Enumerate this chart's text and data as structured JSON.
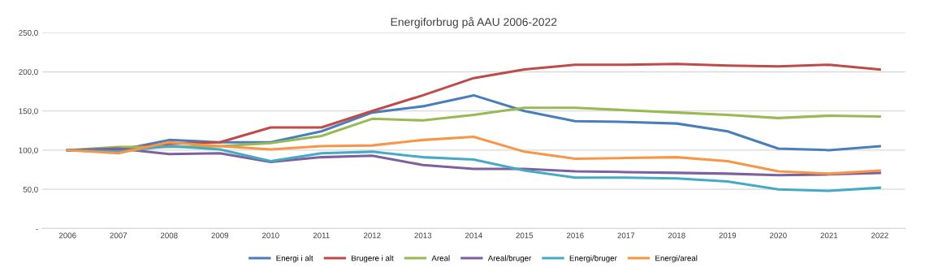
{
  "chart_data": {
    "type": "line",
    "title": "Energiforbrug på AAU 2006-2022",
    "categories": [
      "2006",
      "2007",
      "2008",
      "2009",
      "2010",
      "2011",
      "2012",
      "2013",
      "2014",
      "2015",
      "2016",
      "2017",
      "2018",
      "2019",
      "2020",
      "2021",
      "2022"
    ],
    "series": [
      {
        "name": "Energi i alt",
        "color": "#4a7ebb",
        "values": [
          100,
          100,
          113,
          110,
          110,
          124,
          148,
          156,
          170,
          150,
          137,
          136,
          134,
          124,
          102,
          100,
          105
        ]
      },
      {
        "name": "Brugere i alt",
        "color": "#be4b48",
        "values": [
          100,
          102,
          108,
          110,
          129,
          129,
          150,
          170,
          192,
          203,
          209,
          209,
          210,
          208,
          207,
          209,
          203
        ]
      },
      {
        "name": "Areal",
        "color": "#98b954",
        "values": [
          100,
          104,
          104,
          105,
          109,
          118,
          140,
          138,
          145,
          154,
          154,
          151,
          148,
          145,
          141,
          144,
          143
        ]
      },
      {
        "name": "Areal/bruger",
        "color": "#7d60a0",
        "values": [
          100,
          102,
          95,
          96,
          85,
          91,
          93,
          81,
          76,
          76,
          73,
          72,
          71,
          70,
          68,
          69,
          71
        ]
      },
      {
        "name": "Energi/bruger",
        "color": "#46aac5",
        "values": [
          100,
          98,
          105,
          101,
          86,
          96,
          98,
          91,
          88,
          74,
          65,
          65,
          64,
          60,
          50,
          48,
          52
        ]
      },
      {
        "name": "Energi/areal",
        "color": "#f79646",
        "values": [
          100,
          96,
          110,
          105,
          101,
          105,
          106,
          113,
          117,
          98,
          89,
          90,
          91,
          86,
          73,
          70,
          74
        ]
      }
    ],
    "ylim": [
      0,
      250
    ],
    "yticks": [
      {
        "value": 0,
        "label": "-"
      },
      {
        "value": 50,
        "label": "50,0"
      },
      {
        "value": 100,
        "label": "100,0"
      },
      {
        "value": 150,
        "label": "150,0"
      },
      {
        "value": 200,
        "label": "200,0"
      },
      {
        "value": 250,
        "label": "250,0"
      }
    ],
    "grid": "y",
    "legend": "bottom",
    "marker": "none",
    "line_style": "solid"
  }
}
